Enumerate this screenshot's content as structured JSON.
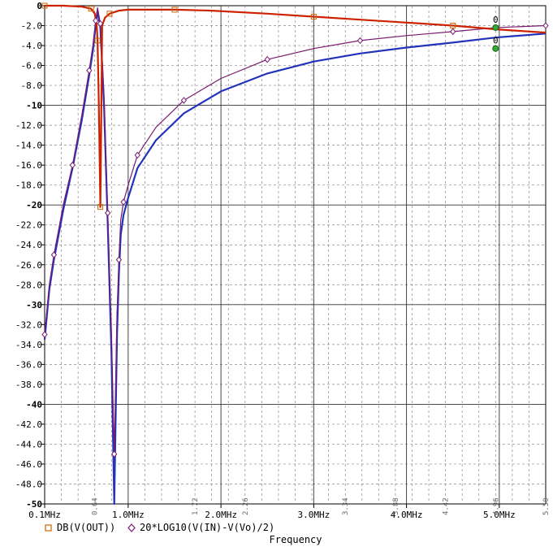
{
  "chart_data": {
    "type": "line",
    "xlabel": "Frequency",
    "xlim": [
      0.1,
      5.5
    ],
    "ylim": [
      -50,
      0
    ],
    "y_ticks": [
      "0",
      "-2.0",
      "-4.0",
      "-6.0",
      "-8.0",
      "-10",
      "-12.0",
      "-14.0",
      "-16.0",
      "-18.0",
      "-20",
      "-22.0",
      "-24.0",
      "-26.0",
      "-28.0",
      "-30",
      "-32.0",
      "-34.0",
      "-36.0",
      "-38.0",
      "-40",
      "-42.0",
      "-44.0",
      "-46.0",
      "-48.0",
      "-50"
    ],
    "x_ticks": [
      {
        "value": 0.1,
        "label": "0.1MHz"
      },
      {
        "value": 1.0,
        "label": "1.0MHz"
      },
      {
        "value": 2.0,
        "label": "2.0MHz"
      },
      {
        "value": 3.0,
        "label": "3.0MHz"
      },
      {
        "value": 4.0,
        "label": "4.0MHz"
      },
      {
        "value": 5.0,
        "label": "5.0MHz"
      }
    ],
    "x_minor_labels": [
      {
        "value": 0.64,
        "label": "0.64"
      },
      {
        "value": 1.72,
        "label": "1.72"
      },
      {
        "value": 2.26,
        "label": "2.26"
      },
      {
        "value": 3.34,
        "label": "3.34"
      },
      {
        "value": 3.88,
        "label": "3.88"
      },
      {
        "value": 4.42,
        "label": "4.42"
      },
      {
        "value": 4.96,
        "label": "4.96"
      },
      {
        "value": 5.5,
        "label": "5.50"
      }
    ],
    "grid": true,
    "legend_position": "bottom-left",
    "series": [
      {
        "name": "DB(V(OUT))",
        "color": "#cc2200",
        "marker": "square",
        "x": [
          0.1,
          0.3,
          0.5,
          0.6,
          0.64,
          0.66,
          0.67,
          0.68,
          0.69,
          0.7,
          0.72,
          0.75,
          0.8,
          0.9,
          1.0,
          1.5,
          1.9,
          2.5,
          3.0,
          3.5,
          4.0,
          4.5,
          5.0,
          5.5
        ],
        "y": [
          0,
          0,
          -0.1,
          -0.3,
          -0.8,
          -1.8,
          -3.5,
          -8.0,
          -13.6,
          -20.2,
          -2.0,
          -1.2,
          -0.8,
          -0.5,
          -0.4,
          -0.4,
          -0.5,
          -0.8,
          -1.1,
          -1.4,
          -1.7,
          -2.0,
          -2.4,
          -2.7
        ]
      },
      {
        "name": "20*LOG10(V(IN)-V(Vo)/2)",
        "color": "#7a1a6e",
        "marker": "diamond",
        "x": [
          0.1,
          0.15,
          0.2,
          0.3,
          0.4,
          0.5,
          0.58,
          0.62,
          0.65,
          0.67,
          0.7,
          0.74,
          0.78,
          0.82,
          0.85,
          0.88,
          0.9,
          0.92,
          0.95,
          1.0,
          1.1,
          1.3,
          1.6,
          2.0,
          2.5,
          3.0,
          3.5,
          4.0,
          4.5,
          4.96,
          5.5
        ],
        "y": [
          -33,
          -28,
          -25,
          -20,
          -16,
          -11,
          -6.5,
          -4,
          -1.5,
          -0.2,
          -1.8,
          -9,
          -20.8,
          -32.9,
          -45,
          -30.9,
          -25.5,
          -21.5,
          -19.7,
          -18,
          -15,
          -12.2,
          -9.5,
          -7.3,
          -5.4,
          -4.3,
          -3.5,
          -3.0,
          -2.6,
          -2.2,
          -2.0
        ]
      },
      {
        "name": "",
        "color": "#2233bb",
        "x": [
          0.1,
          0.15,
          0.2,
          0.3,
          0.4,
          0.5,
          0.58,
          0.62,
          0.65,
          0.67,
          0.7,
          0.74,
          0.78,
          0.82,
          0.85,
          0.88,
          0.9,
          0.92,
          0.95,
          1.0,
          1.1,
          1.3,
          1.6,
          2.0,
          2.5,
          3.0,
          3.5,
          4.0,
          4.5,
          4.96,
          5.5
        ],
        "y": [
          -33.5,
          -28.5,
          -25.5,
          -20.5,
          -16.3,
          -11.5,
          -7,
          -4.5,
          -2,
          -0.5,
          -2.2,
          -10,
          -22,
          -35,
          -50,
          -33,
          -27,
          -23,
          -21,
          -19.3,
          -16.3,
          -13.5,
          -10.8,
          -8.6,
          -6.8,
          -5.6,
          -4.8,
          -4.2,
          -3.7,
          -3.2,
          -2.8
        ]
      }
    ],
    "cursors": [
      {
        "x": 4.96,
        "y": -2.2,
        "label": "0"
      },
      {
        "x": 4.96,
        "y": -4.3,
        "label": "0"
      }
    ]
  }
}
